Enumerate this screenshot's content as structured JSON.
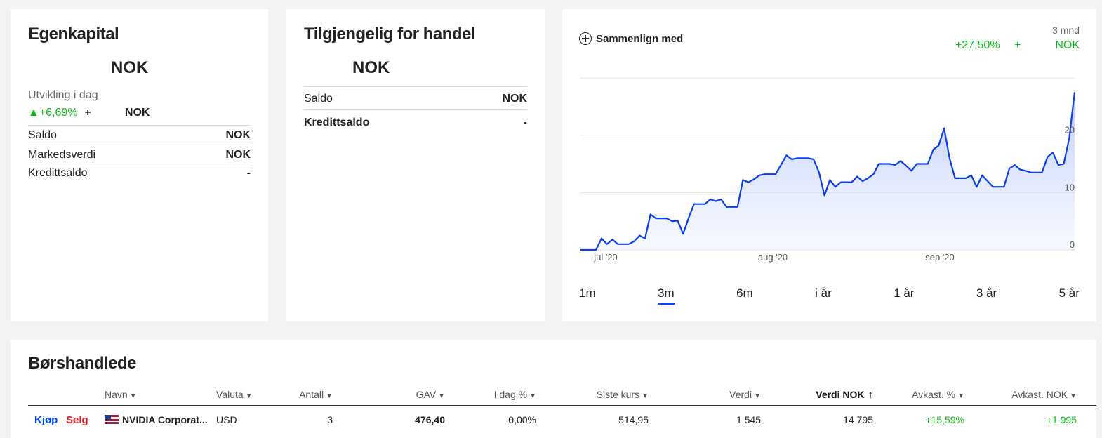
{
  "equity": {
    "title": "Egenkapital",
    "value": "NOK",
    "change_label": "Utvikling i dag",
    "change_pct": "▲+6,69%",
    "change_plus": "+",
    "change_value": "NOK",
    "rows": [
      {
        "label": "Saldo",
        "value": "NOK"
      },
      {
        "label": "Markedsverdi",
        "value": "NOK"
      },
      {
        "label": "Kredittsaldo",
        "value": "-"
      }
    ]
  },
  "available": {
    "title": "Tilgjengelig for handel",
    "value": "NOK",
    "rows": [
      {
        "label": "Saldo",
        "value": "NOK"
      },
      {
        "label": "Kredittsaldo",
        "value": "-"
      }
    ]
  },
  "chart_card": {
    "compare_label": "Sammenlign med",
    "period_label": "3 mnd",
    "performance_pct": "+27,50%",
    "performance_plus": "+",
    "performance_currency": "NOK",
    "line_color": "#0b3df0",
    "tabs": [
      {
        "label": "1m",
        "active": false
      },
      {
        "label": "3m",
        "active": true
      },
      {
        "label": "6m",
        "active": false
      },
      {
        "label": "i år",
        "active": false
      },
      {
        "label": "1 år",
        "active": false
      },
      {
        "label": "3 år",
        "active": false
      },
      {
        "label": "5 år",
        "active": false
      }
    ]
  },
  "chart_data": {
    "type": "area",
    "x_ticks": [
      "jul '20",
      "aug '20",
      "sep '20"
    ],
    "y_ticks": [
      "0",
      "10",
      "20"
    ],
    "ylim": [
      0,
      30
    ],
    "grid": true,
    "series": [
      {
        "values": [
          0,
          0,
          0,
          0,
          2,
          1,
          1.8,
          1,
          1,
          1,
          1.5,
          2.5,
          2,
          6.2,
          5.5,
          5.5,
          5.5,
          5,
          5.1,
          2.8,
          5.5,
          8,
          8,
          8,
          8.8,
          8.5,
          8.8,
          7.5,
          7.5,
          7.5,
          12.2,
          11.8,
          12.3,
          13,
          13.2,
          13.2,
          13.2,
          14.8,
          16.5,
          15.8,
          16,
          16,
          16,
          15.8,
          13.5,
          9.5,
          12.2,
          11,
          11.8,
          11.8,
          11.8,
          12.8,
          12,
          12.5,
          13.2,
          15,
          15,
          15,
          14.8,
          15.5,
          14.7,
          13.8,
          15,
          15,
          15,
          17.5,
          18.2,
          21.2,
          16,
          12.5,
          12.5,
          12.5,
          13,
          11,
          13,
          12,
          11,
          11,
          11,
          14.2,
          14.8,
          14,
          13.8,
          13.5,
          13.5,
          13.5,
          16.2,
          17,
          14.8,
          15,
          19.5,
          27.5
        ]
      }
    ]
  },
  "holdings": {
    "title": "Børshandlede",
    "columns": [
      "Navn",
      "Valuta",
      "Antall",
      "GAV",
      "I dag %",
      "Siste kurs",
      "Verdi",
      "Verdi NOK",
      "Avkast. %",
      "Avkast. NOK"
    ],
    "rows": [
      {
        "buy": "Kjøp",
        "sell": "Selg",
        "name": "NVIDIA Corporat...",
        "currency": "USD",
        "quantity": "3",
        "gav": "476,40",
        "today_pct": "0,00%",
        "last_price": "514,95",
        "value": "1 545",
        "value_nok": "14 795",
        "return_pct": "+15,59%",
        "return_nok": "+1 995"
      }
    ]
  }
}
